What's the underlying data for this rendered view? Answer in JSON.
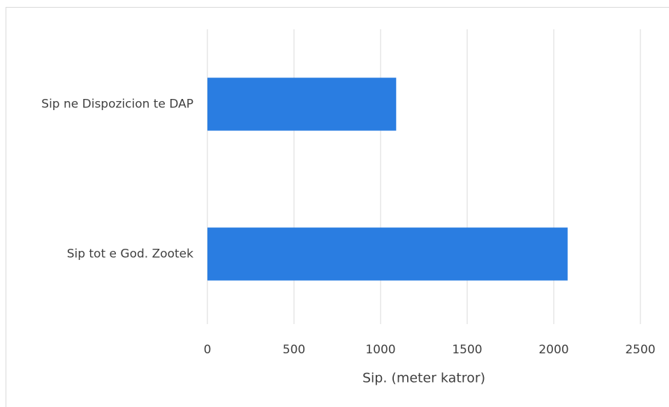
{
  "chart_data": {
    "type": "bar",
    "orientation": "horizontal",
    "categories": [
      "Sip ne Dispozicion te DAP",
      "Sip tot e God. Zootek"
    ],
    "values": [
      1090,
      2080
    ],
    "color": "#2a7de1",
    "xlabel": "Sip. (meter katror)",
    "xlim": [
      0,
      2500
    ],
    "xticks": [
      0,
      500,
      1000,
      1500,
      2000,
      2500
    ],
    "grid": true
  }
}
